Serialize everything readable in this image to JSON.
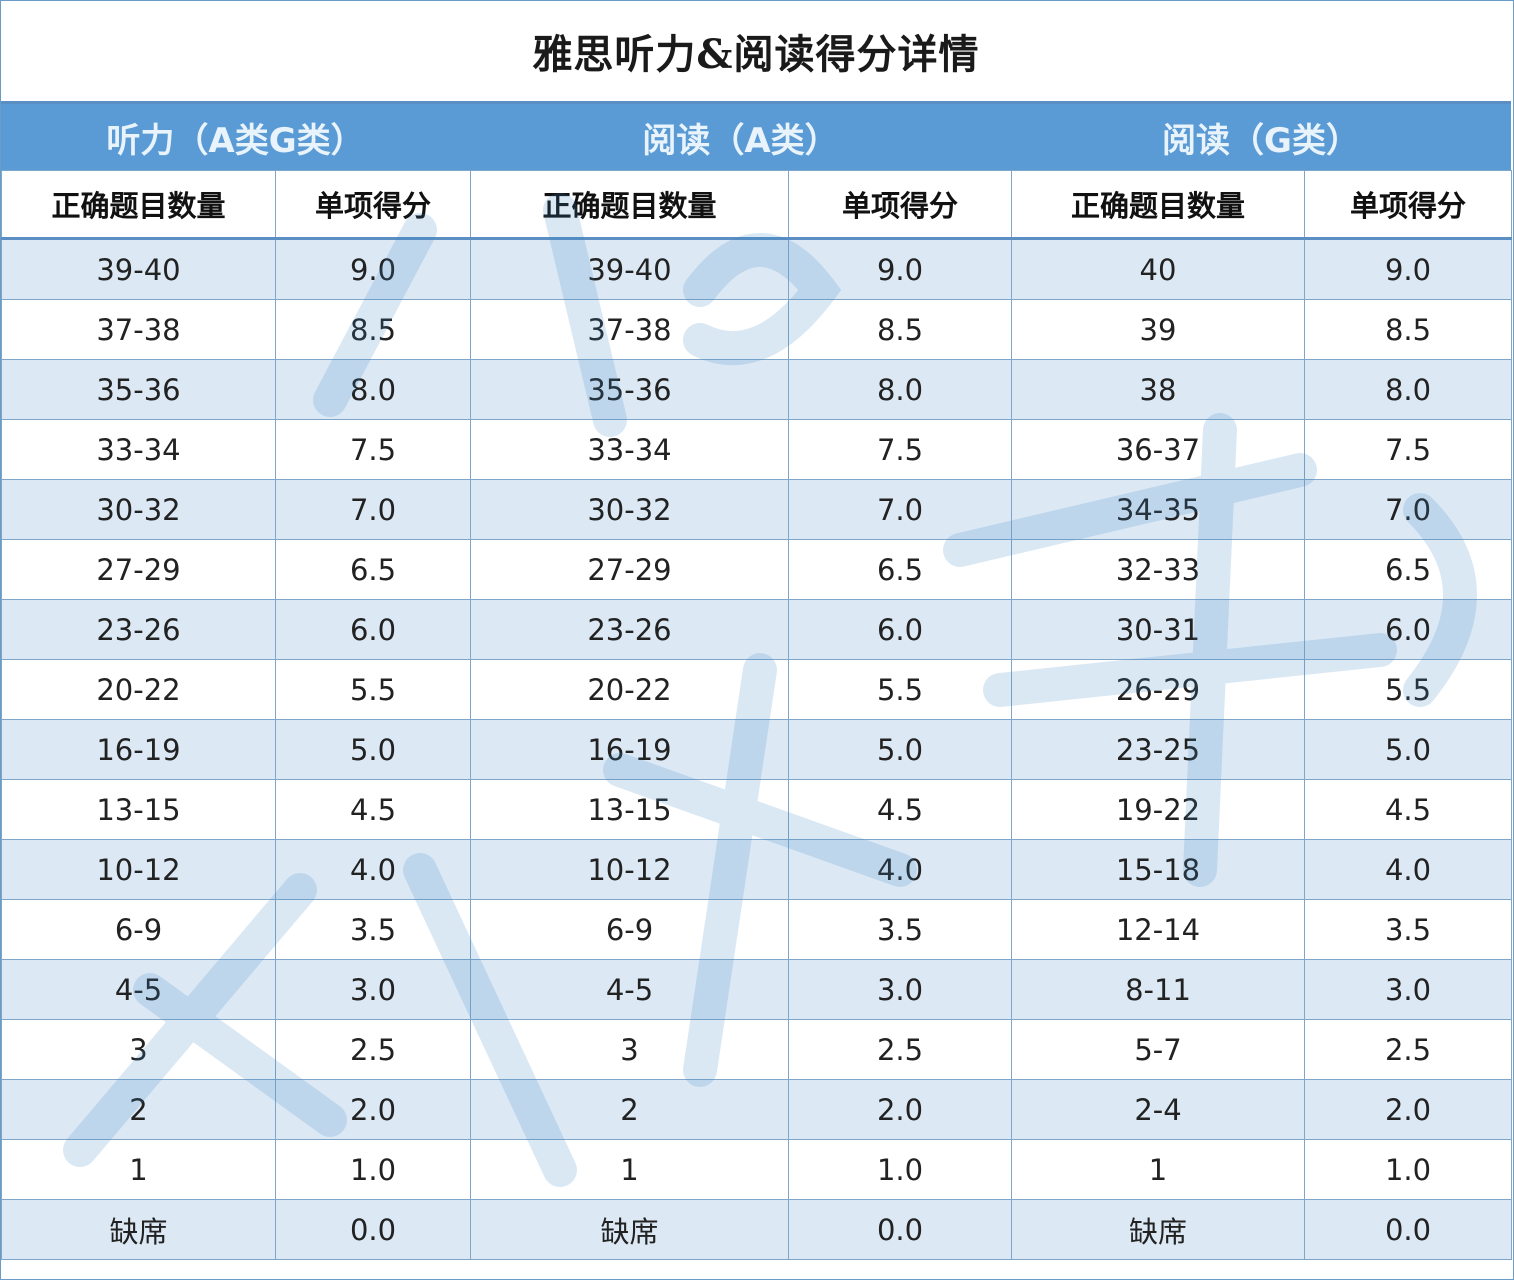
{
  "title": "雅思听力&阅读得分详情",
  "sections": [
    {
      "label": "听力（A类G类）"
    },
    {
      "label": "阅读（A类）"
    },
    {
      "label": "阅读（G类）"
    }
  ],
  "column_headers": [
    "正确题目数量",
    "单项得分",
    "正确题目数量",
    "单项得分",
    "正确题目数量",
    "单项得分"
  ],
  "rows": [
    [
      "39-40",
      "9.0",
      "39-40",
      "9.0",
      "40",
      "9.0"
    ],
    [
      "37-38",
      "8.5",
      "37-38",
      "8.5",
      "39",
      "8.5"
    ],
    [
      "35-36",
      "8.0",
      "35-36",
      "8.0",
      "38",
      "8.0"
    ],
    [
      "33-34",
      "7.5",
      "33-34",
      "7.5",
      "36-37",
      "7.5"
    ],
    [
      "30-32",
      "7.0",
      "30-32",
      "7.0",
      "34-35",
      "7.0"
    ],
    [
      "27-29",
      "6.5",
      "27-29",
      "6.5",
      "32-33",
      "6.5"
    ],
    [
      "23-26",
      "6.0",
      "23-26",
      "6.0",
      "30-31",
      "6.0"
    ],
    [
      "20-22",
      "5.5",
      "20-22",
      "5.5",
      "26-29",
      "5.5"
    ],
    [
      "16-19",
      "5.0",
      "16-19",
      "5.0",
      "23-25",
      "5.0"
    ],
    [
      "13-15",
      "4.5",
      "13-15",
      "4.5",
      "19-22",
      "4.5"
    ],
    [
      "10-12",
      "4.0",
      "10-12",
      "4.0",
      "15-18",
      "4.0"
    ],
    [
      "6-9",
      "3.5",
      "6-9",
      "3.5",
      "12-14",
      "3.5"
    ],
    [
      "4-5",
      "3.0",
      "4-5",
      "3.0",
      "8-11",
      "3.0"
    ],
    [
      "3",
      "2.5",
      "3",
      "2.5",
      "5-7",
      "2.5"
    ],
    [
      "2",
      "2.0",
      "2",
      "2.0",
      "2-4",
      "2.0"
    ],
    [
      "1",
      "1.0",
      "1",
      "1.0",
      "1",
      "1.0"
    ],
    [
      "缺席",
      "0.0",
      "缺席",
      "0.0",
      "缺席",
      "0.0"
    ]
  ],
  "colors": {
    "section_bar": "#5b9bd5",
    "alt_row": "#dce9f5",
    "grid_line": "#7fa6c9"
  }
}
